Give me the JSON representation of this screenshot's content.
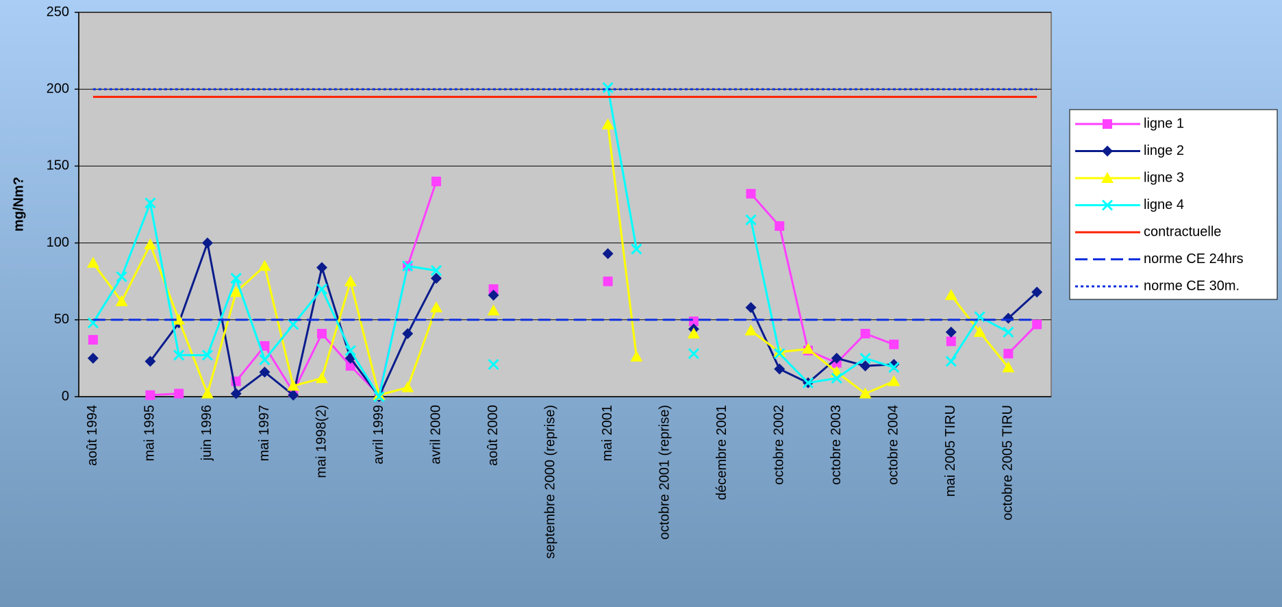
{
  "chart_data": {
    "type": "line",
    "y_label": "mg/Nm?",
    "categories": [
      "août 1994",
      null,
      "mai 1995",
      null,
      "juin 1996",
      null,
      "mai 1997",
      null,
      "mai 1998(2)",
      null,
      "avril 1999",
      null,
      "avril 2000",
      null,
      "août 2000",
      null,
      "septembre 2000 (reprise)",
      null,
      "mai 2001",
      null,
      "octobre 2001 (reprise)",
      null,
      "décembre 2001",
      null,
      "octobre 2002",
      null,
      "octobre 2003",
      null,
      "octobre 2004",
      null,
      "mai 2005 TIRU",
      null,
      "octobre 2005 TIRU",
      null
    ],
    "ylim": [
      0,
      250
    ],
    "yticks": [
      0,
      50,
      100,
      150,
      200,
      250
    ],
    "grid": true,
    "legend": "right",
    "series": [
      {
        "name": "ligne 1",
        "color": "#ff40ff",
        "marker": "square",
        "dash": "solid",
        "values": [
          37,
          null,
          1,
          2,
          null,
          10,
          33,
          3,
          41,
          20,
          1,
          85,
          140,
          null,
          70,
          null,
          null,
          null,
          75,
          null,
          null,
          49,
          null,
          132,
          111,
          30,
          22,
          41,
          34,
          null,
          36,
          null,
          28,
          47
        ]
      },
      {
        "name": "linge 2",
        "color": "#0a1c8c",
        "marker": "diamond",
        "dash": "solid",
        "values": [
          25,
          null,
          23,
          48,
          100,
          2,
          16,
          1,
          84,
          25,
          0,
          41,
          77,
          null,
          66,
          null,
          null,
          null,
          93,
          null,
          null,
          44,
          null,
          58,
          18,
          9,
          25,
          20,
          21,
          null,
          42,
          null,
          51,
          68
        ]
      },
      {
        "name": "ligne 3",
        "color": "#ffff00",
        "marker": "triangle",
        "dash": "solid",
        "values": [
          87,
          62,
          99,
          50,
          2,
          68,
          85,
          7,
          12,
          75,
          1,
          6,
          58,
          null,
          56,
          null,
          null,
          null,
          177,
          26,
          null,
          41,
          null,
          43,
          29,
          31,
          16,
          2,
          10,
          null,
          66,
          42,
          19,
          null
        ]
      },
      {
        "name": "ligne 4",
        "color": "#00ffff",
        "marker": "x",
        "dash": "solid",
        "values": [
          48,
          78,
          126,
          27,
          27,
          77,
          24,
          47,
          70,
          30,
          0,
          85,
          82,
          null,
          21,
          null,
          null,
          null,
          201,
          96,
          null,
          28,
          null,
          115,
          28,
          9,
          12,
          25,
          19,
          null,
          23,
          52,
          42,
          null
        ]
      },
      {
        "name": "contractuelle",
        "color": "#ff2000",
        "marker": "none",
        "dash": "solid",
        "values": [
          195,
          195,
          195,
          195,
          195,
          195,
          195,
          195,
          195,
          195,
          195,
          195,
          195,
          195,
          195,
          195,
          195,
          195,
          195,
          195,
          195,
          195,
          195,
          195,
          195,
          195,
          195,
          195,
          195,
          195,
          195,
          195,
          195,
          195
        ]
      },
      {
        "name": "norme CE 24hrs",
        "color": "#1030e0",
        "marker": "none",
        "dash": "dashed",
        "values": [
          50,
          50,
          50,
          50,
          50,
          50,
          50,
          50,
          50,
          50,
          50,
          50,
          50,
          50,
          50,
          50,
          50,
          50,
          50,
          50,
          50,
          50,
          50,
          50,
          50,
          50,
          50,
          50,
          50,
          50,
          50,
          50,
          50,
          50
        ]
      },
      {
        "name": "norme CE 30m.",
        "color": "#1030e0",
        "marker": "none",
        "dash": "dotted",
        "values": [
          200,
          200,
          200,
          200,
          200,
          200,
          200,
          200,
          200,
          200,
          200,
          200,
          200,
          200,
          200,
          200,
          200,
          200,
          200,
          200,
          200,
          200,
          200,
          200,
          200,
          200,
          200,
          200,
          200,
          200,
          200,
          200,
          200,
          200
        ]
      }
    ]
  }
}
